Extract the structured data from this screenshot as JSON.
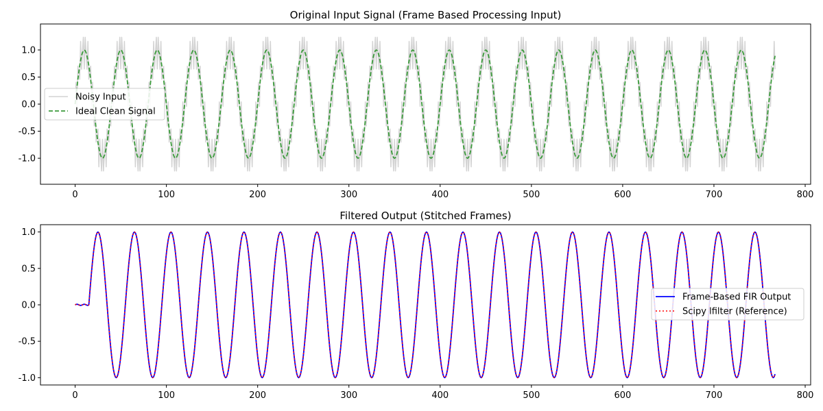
{
  "colors": {
    "noisy": "#d3d3d3",
    "clean": "#3a9a3a",
    "fir": "#0000ff",
    "reference": "#ff0000",
    "axes": "#000000",
    "legend_border": "#cccccc"
  },
  "chart_data": [
    {
      "type": "line",
      "title": "Original Input Signal (Frame Based Processing Input)",
      "xlabel": "",
      "ylabel": "",
      "xlim": [
        -38,
        806
      ],
      "ylim": [
        -1.48,
        1.48
      ],
      "xticks": [
        0,
        100,
        200,
        300,
        400,
        500,
        600,
        700,
        800
      ],
      "yticks": [
        -1.0,
        -0.5,
        0.0,
        0.5,
        1.0
      ],
      "legend": {
        "placement": "center-left"
      },
      "grid": false,
      "sample_count": 768,
      "series": [
        {
          "name": "Noisy Input",
          "style": "solid",
          "description": "clean sine plus high-frequency component",
          "formula": "sin(2*pi*n/40) + 0.35*sin(2*pi*n*3/8)",
          "n_range": [
            0,
            767
          ]
        },
        {
          "name": "Ideal Clean Signal",
          "style": "dashed",
          "formula": "sin(2*pi*n/40)",
          "n_range": [
            0,
            767
          ]
        }
      ]
    },
    {
      "type": "line",
      "title": "Filtered Output (Stitched Frames)",
      "xlabel": "",
      "ylabel": "",
      "xlim": [
        -38,
        806
      ],
      "ylim": [
        -1.1,
        1.1
      ],
      "xticks": [
        0,
        100,
        200,
        300,
        400,
        500,
        600,
        700,
        800
      ],
      "yticks": [
        -1.0,
        -0.5,
        0.0,
        0.5,
        1.0
      ],
      "legend": {
        "placement": "center-right"
      },
      "grid": false,
      "sample_count": 768,
      "series": [
        {
          "name": "Frame-Based FIR Output",
          "style": "solid",
          "formula": "sin(2*pi*(n-15)/40) after ~15-sample filter delay; ~0 for n<15",
          "n_range": [
            0,
            767
          ]
        },
        {
          "name": "Scipy lfilter (Reference)",
          "style": "dotted",
          "formula": "identical to Frame-Based FIR Output",
          "n_range": [
            0,
            767
          ]
        }
      ]
    }
  ]
}
